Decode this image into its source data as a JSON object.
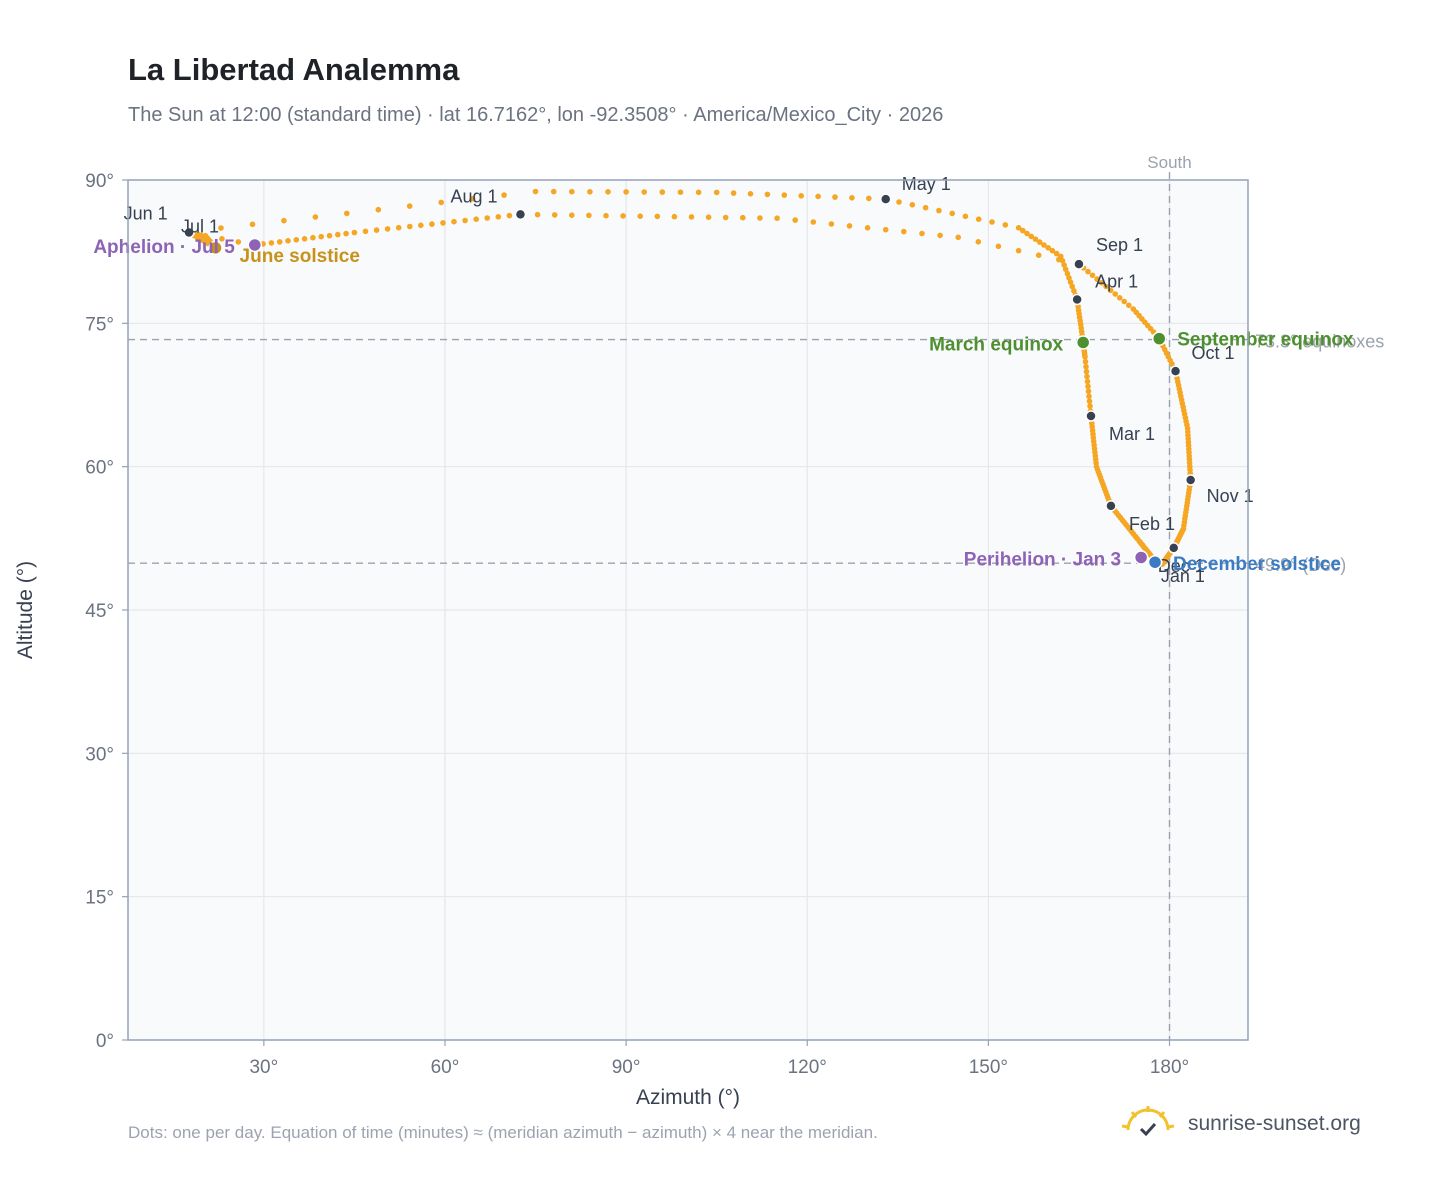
{
  "header": {
    "title": "La Libertad Analemma",
    "subtitle": "The Sun at 12:00 (standard time) · lat 16.7162°, lon -92.3508° · America/Mexico_City · 2026"
  },
  "footer": {
    "note": "Dots: one per day. Equation of time (minutes) ≈ (meridian azimuth − azimuth) × 4 near the meridian.",
    "brand": "sunrise-sunset.org",
    "brand_icon": "sun-check-icon"
  },
  "chart_data": {
    "type": "scatter",
    "xlabel": "Azimuth (°)",
    "ylabel": "Altitude (°)",
    "xlim": [
      7.5,
      193
    ],
    "ylim": [
      0,
      90
    ],
    "xticks": [
      30,
      60,
      90,
      120,
      150,
      180
    ],
    "xtick_labels": [
      "30°",
      "60°",
      "90°",
      "120°",
      "150°",
      "180°"
    ],
    "yticks": [
      0,
      15,
      30,
      45,
      60,
      75,
      90
    ],
    "ytick_labels": [
      "0°",
      "15°",
      "30°",
      "45°",
      "60°",
      "75°",
      "90°"
    ],
    "grid": true,
    "colors": {
      "daily": "#f5a623",
      "month": "#374151",
      "equinox": "#4e8f2f",
      "solstice_dec": "#3b7bc4",
      "solstice_jun": "#c8921a",
      "apsis": "#8e62b5",
      "reference": "#9aa3ad",
      "plot_bg": "#f8fafc",
      "grid": "#e5e7eb",
      "frame": "#94a3b8"
    },
    "path_knots": [
      {
        "day": 1,
        "az": 177.8,
        "alt": 50.0
      },
      {
        "day": 17,
        "az": 175.0,
        "alt": 52.2
      },
      {
        "day": 32,
        "az": 170.3,
        "alt": 55.9
      },
      {
        "day": 46,
        "az": 167.9,
        "alt": 60.0
      },
      {
        "day": 60,
        "az": 167.0,
        "alt": 65.3
      },
      {
        "day": 72,
        "az": 166.0,
        "alt": 71.5
      },
      {
        "day": 79,
        "az": 165.7,
        "alt": 73.0
      },
      {
        "day": 91,
        "az": 164.7,
        "alt": 77.5
      },
      {
        "day": 101,
        "az": 162.0,
        "alt": 82.0
      },
      {
        "day": 111,
        "az": 155.0,
        "alt": 85.0
      },
      {
        "day": 121,
        "az": 133.0,
        "alt": 88.0
      },
      {
        "day": 131,
        "az": 105.0,
        "alt": 88.7
      },
      {
        "day": 141,
        "az": 75.0,
        "alt": 88.8
      },
      {
        "day": 152,
        "az": 17.7,
        "alt": 84.6
      },
      {
        "day": 158,
        "az": 20.5,
        "alt": 84.0
      },
      {
        "day": 172,
        "az": 22.0,
        "alt": 82.9
      },
      {
        "day": 182,
        "az": 17.6,
        "alt": 84.5
      },
      {
        "day": 186,
        "az": 28.5,
        "alt": 83.2
      },
      {
        "day": 198,
        "az": 45.0,
        "alt": 84.5
      },
      {
        "day": 213,
        "az": 72.5,
        "alt": 86.4
      },
      {
        "day": 228,
        "az": 115.0,
        "alt": 86.0
      },
      {
        "day": 238,
        "az": 145.0,
        "alt": 84.0
      },
      {
        "day": 244,
        "az": 165.0,
        "alt": 81.2
      },
      {
        "day": 256,
        "az": 174.0,
        "alt": 76.5
      },
      {
        "day": 265,
        "az": 178.3,
        "alt": 73.4
      },
      {
        "day": 274,
        "az": 181.0,
        "alt": 70.0
      },
      {
        "day": 290,
        "az": 183.0,
        "alt": 64.0
      },
      {
        "day": 305,
        "az": 183.5,
        "alt": 58.6
      },
      {
        "day": 320,
        "az": 182.3,
        "alt": 53.5
      },
      {
        "day": 335,
        "az": 180.8,
        "alt": 51.6
      },
      {
        "day": 355,
        "az": 178.8,
        "alt": 49.8
      },
      {
        "day": 366,
        "az": 177.8,
        "alt": 50.0
      }
    ],
    "month_points": [
      {
        "label": "Jan 1",
        "az": 177.9,
        "alt": 50.0
      },
      {
        "label": "Feb 1",
        "az": 170.3,
        "alt": 55.9
      },
      {
        "label": "Mar 1",
        "az": 167.0,
        "alt": 65.3
      },
      {
        "label": "Apr 1",
        "az": 164.7,
        "alt": 77.5
      },
      {
        "label": "May 1",
        "az": 133.0,
        "alt": 88.0
      },
      {
        "label": "Jun 1",
        "az": 17.7,
        "alt": 84.6
      },
      {
        "label": "Jul 1",
        "az": 17.6,
        "alt": 84.5
      },
      {
        "label": "Aug 1",
        "az": 72.5,
        "alt": 86.4
      },
      {
        "label": "Sep 1",
        "az": 165.0,
        "alt": 81.2
      },
      {
        "label": "Oct 1",
        "az": 181.0,
        "alt": 70.0
      },
      {
        "label": "Nov 1",
        "az": 183.5,
        "alt": 58.6
      },
      {
        "label": "Dec 1",
        "az": 180.7,
        "alt": 51.5
      }
    ],
    "events": [
      {
        "label": "March equinox",
        "az": 165.7,
        "alt": 73.0,
        "kind": "equinox"
      },
      {
        "label": "September equinox",
        "az": 178.3,
        "alt": 73.4,
        "kind": "equinox"
      },
      {
        "label": "June solstice",
        "az": 22.0,
        "alt": 82.9,
        "kind": "solstice_jun"
      },
      {
        "label": "December solstice",
        "az": 177.6,
        "alt": 50.0,
        "kind": "solstice_dec"
      },
      {
        "label": "Perihelion · Jan 3",
        "az": 175.3,
        "alt": 50.5,
        "kind": "apsis"
      },
      {
        "label": "Aphelion · Jul 5",
        "az": 28.5,
        "alt": 83.2,
        "kind": "apsis"
      }
    ],
    "reference_lines": {
      "south": {
        "label": "South",
        "az": 180
      },
      "equinox_alt": {
        "label": "73.3° equinoxes",
        "alt": 73.3
      },
      "solstice_alt": {
        "label": "49.9° (Dec)",
        "alt": 49.9
      }
    }
  }
}
